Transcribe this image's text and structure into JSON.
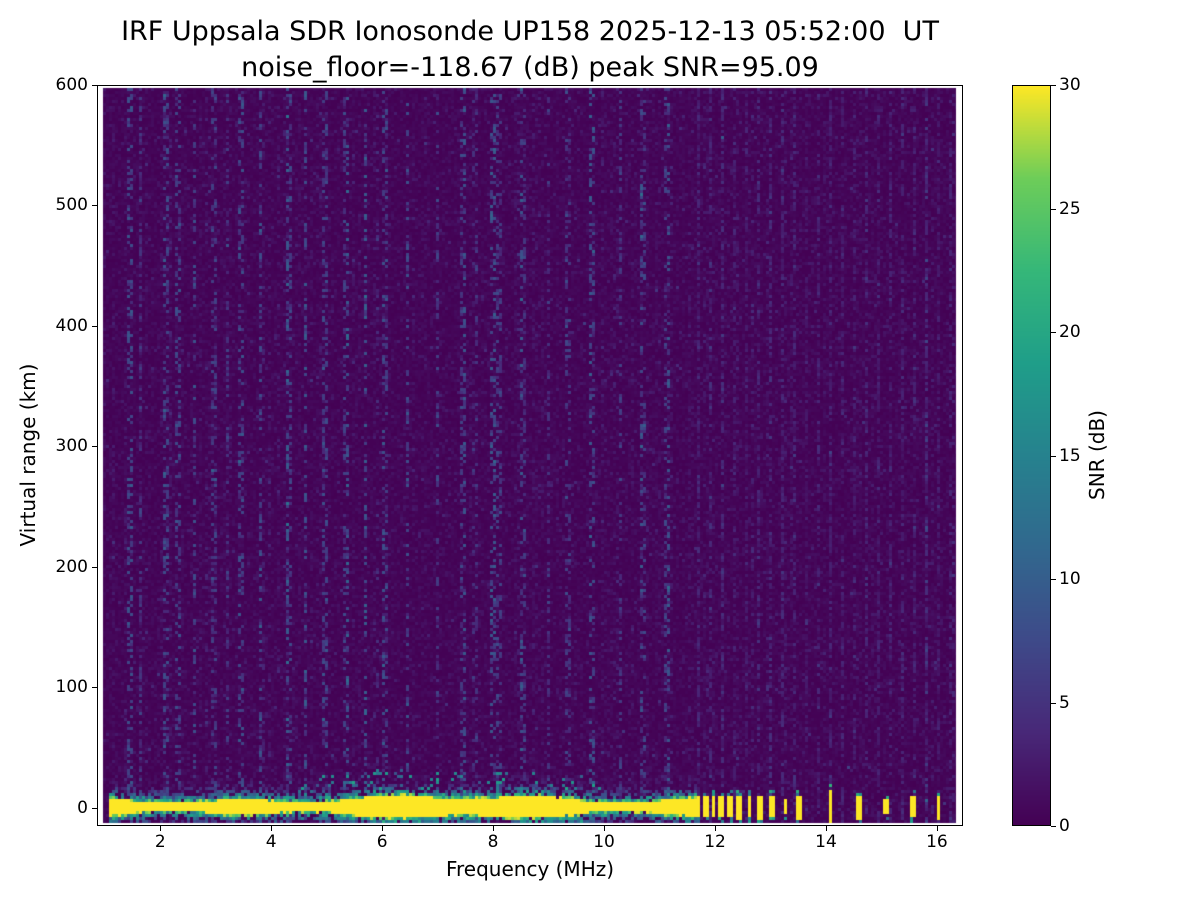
{
  "chart_data": {
    "type": "heatmap",
    "title": "IRF Uppsala SDR Ionosonde UP158 2025-12-13 05:52:00  UT",
    "subtitle": "noise_floor=-118.67 (dB) peak SNR=95.09",
    "xlabel": "Frequency (MHz)",
    "ylabel": "Virtual range (km)",
    "xlim": [
      0.86,
      16.47
    ],
    "ylim": [
      -15,
      600
    ],
    "x_ticks": [
      2,
      4,
      6,
      8,
      10,
      12,
      14,
      16
    ],
    "y_ticks": [
      0,
      100,
      200,
      300,
      400,
      500,
      600
    ],
    "grid": false,
    "colorbar": {
      "label": "SNR (dB)",
      "ticks": [
        0,
        5,
        10,
        15,
        20,
        25,
        30
      ],
      "range": [
        0,
        30
      ],
      "colormap": "viridis"
    },
    "annotations": {
      "station": "UP158",
      "timestamp_ut": "2025-12-13 05:52:00",
      "noise_floor_db": -118.67,
      "peak_snr_db": 95.09
    },
    "features": {
      "background_snr_db": [
        0,
        3
      ],
      "ground_pulse_band": {
        "freq_start_mhz": 1.05,
        "freq_end_mhz": 11.75,
        "center_km": 0,
        "core_half_width_km": 7,
        "fringe_km": 22,
        "peak_snr_db": 30
      },
      "discrete_ground_marks": [
        {
          "freq_mhz": 11.83,
          "half_height_km": 9
        },
        {
          "freq_mhz": 11.98,
          "half_height_km": 8
        },
        {
          "freq_mhz": 12.12,
          "half_height_km": 9
        },
        {
          "freq_mhz": 12.28,
          "half_height_km": 8
        },
        {
          "freq_mhz": 12.45,
          "half_height_km": 10
        },
        {
          "freq_mhz": 12.63,
          "half_height_km": 8
        },
        {
          "freq_mhz": 12.83,
          "half_height_km": 10
        },
        {
          "freq_mhz": 13.04,
          "half_height_km": 9
        },
        {
          "freq_mhz": 13.28,
          "half_height_km": 7
        },
        {
          "freq_mhz": 13.53,
          "half_height_km": 10
        },
        {
          "freq_mhz": 14.09,
          "half_height_km": 13
        },
        {
          "freq_mhz": 14.6,
          "half_height_km": 10
        },
        {
          "freq_mhz": 15.1,
          "half_height_km": 6
        },
        {
          "freq_mhz": 15.57,
          "half_height_km": 9
        },
        {
          "freq_mhz": 16.04,
          "half_height_km": 10
        }
      ],
      "noise_streak_freqs_mhz": [
        1.45,
        1.62,
        2.1,
        2.32,
        2.6,
        2.95,
        3.2,
        3.45,
        3.8,
        4.3,
        4.6,
        4.95,
        5.35,
        5.7,
        6.05,
        6.45,
        7.0,
        7.45,
        7.7,
        7.98,
        8.12,
        8.55,
        9.0,
        9.35,
        9.8,
        10.3,
        10.7,
        11.15
      ],
      "periodic_rfi": {
        "start_mhz": 11.7,
        "end_mhz": 16.36,
        "step_mhz": 0.215
      }
    }
  }
}
